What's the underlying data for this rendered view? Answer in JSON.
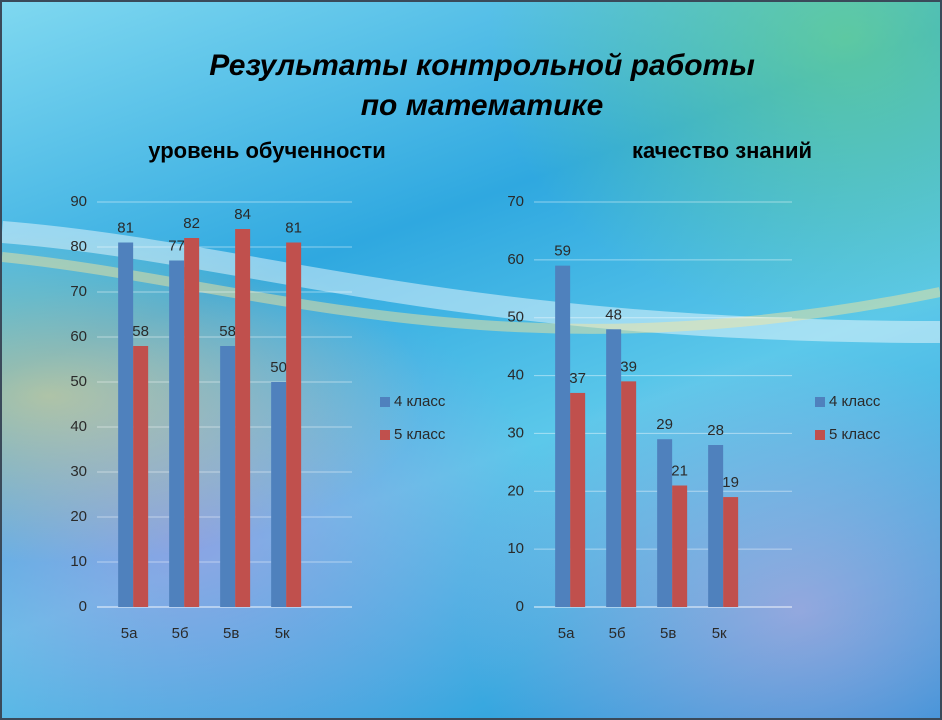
{
  "title": [
    "Результаты контрольной работы",
    "по математике"
  ],
  "chart_data": [
    {
      "type": "bar",
      "title": "уровень обученности",
      "categories": [
        "5а",
        "5б",
        "5в",
        "5к"
      ],
      "series": [
        {
          "name": "4 класс",
          "color": "#4f81bd",
          "values": [
            81,
            77,
            58,
            50
          ]
        },
        {
          "name": "5 класс",
          "color": "#c0504d",
          "values": [
            58,
            82,
            84,
            81
          ]
        }
      ],
      "ylim": [
        0,
        90
      ],
      "yticks": [
        0,
        10,
        20,
        30,
        40,
        50,
        60,
        70,
        80,
        90
      ],
      "grid": true,
      "legend": "right"
    },
    {
      "type": "bar",
      "title": "качество знаний",
      "categories": [
        "5а",
        "5б",
        "5в",
        "5к"
      ],
      "series": [
        {
          "name": "4 класс",
          "color": "#4f81bd",
          "values": [
            59,
            48,
            29,
            28
          ]
        },
        {
          "name": "5 класс",
          "color": "#c0504d",
          "values": [
            37,
            39,
            21,
            19
          ]
        }
      ],
      "ylim": [
        0,
        70
      ],
      "yticks": [
        0,
        10,
        20,
        30,
        40,
        50,
        60,
        70
      ],
      "grid": true,
      "legend": "right"
    }
  ]
}
